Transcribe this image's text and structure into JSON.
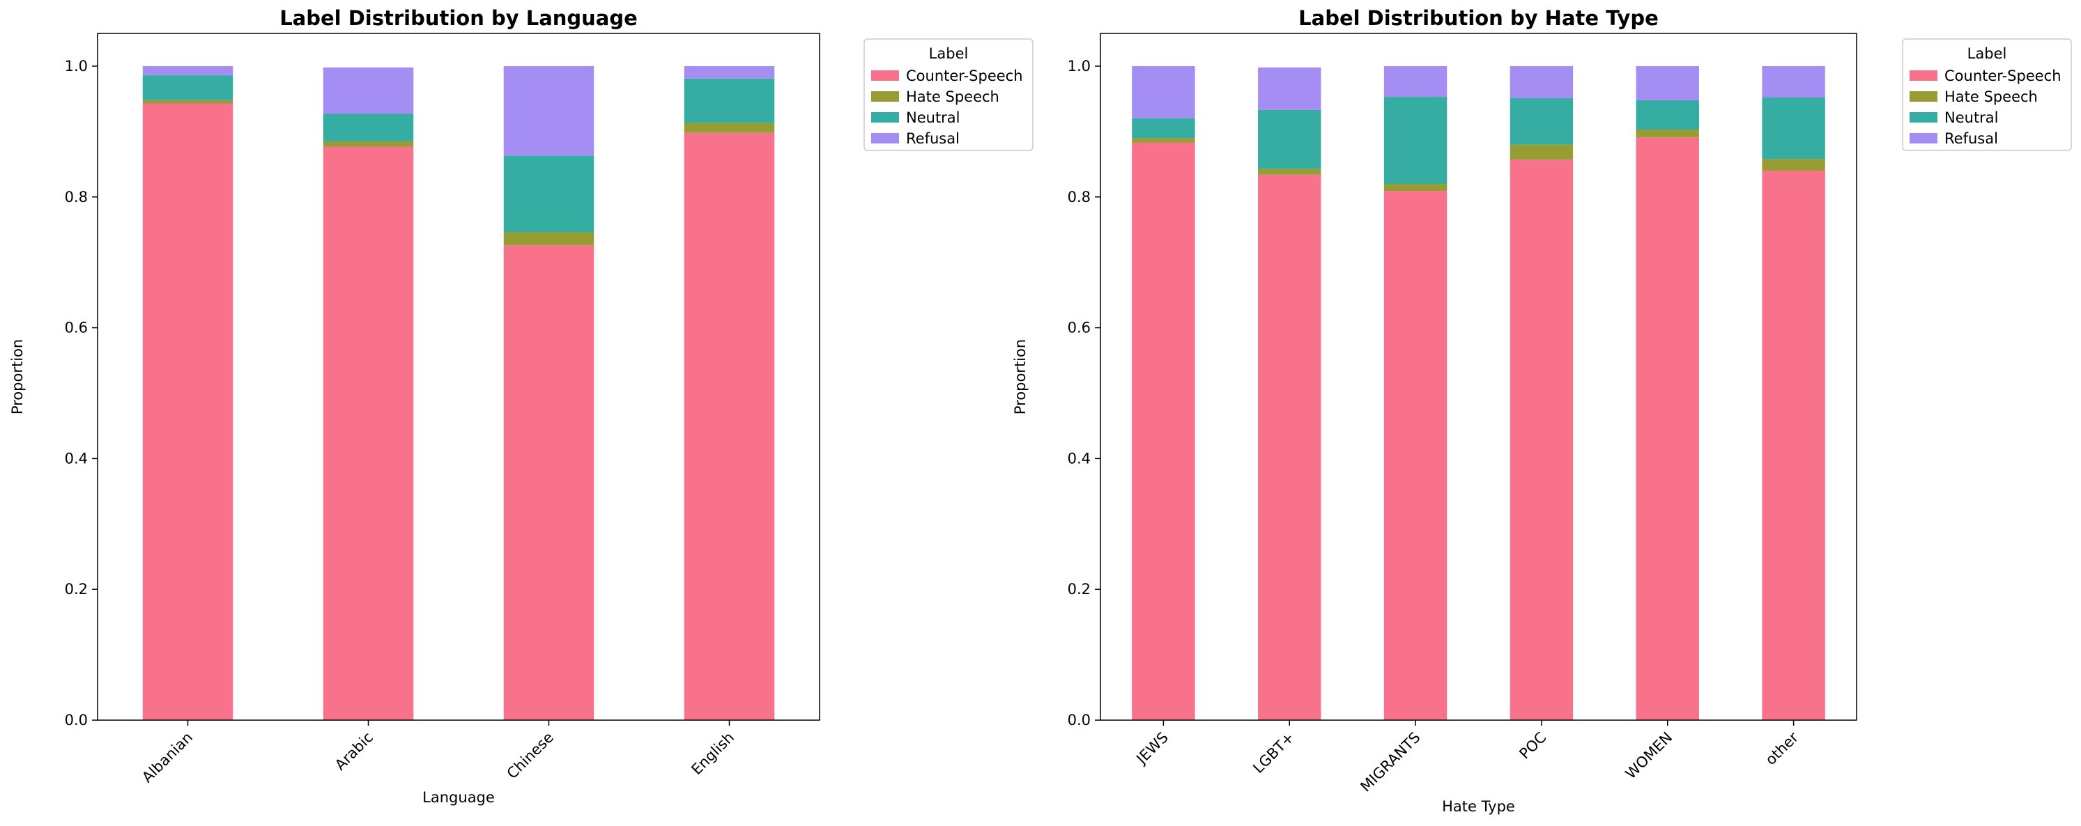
{
  "chart_data": [
    {
      "type": "bar",
      "stacked": true,
      "title": "Label Distribution by Language",
      "xlabel": "Language",
      "ylabel": "Proportion",
      "ylim": [
        0,
        1.05
      ],
      "yticks": [
        "0.0",
        "0.2",
        "0.4",
        "0.6",
        "0.8",
        "1.0"
      ],
      "categories": [
        "Albanian",
        "Arabic",
        "Chinese",
        "English"
      ],
      "legend": {
        "title": "Label",
        "position": "outside-top-right"
      },
      "series": [
        {
          "name": "Counter-Speech",
          "values": [
            0.943,
            0.877,
            0.726,
            0.898
          ]
        },
        {
          "name": "Hate Speech",
          "values": [
            0.005,
            0.008,
            0.02,
            0.015
          ]
        },
        {
          "name": "Neutral",
          "values": [
            0.038,
            0.042,
            0.117,
            0.068
          ]
        },
        {
          "name": "Refusal",
          "values": [
            0.014,
            0.071,
            0.137,
            0.019
          ]
        }
      ],
      "grid": false
    },
    {
      "type": "bar",
      "stacked": true,
      "title": "Label Distribution by Hate Type",
      "xlabel": "Hate Type",
      "ylabel": "Proportion",
      "ylim": [
        0,
        1.05
      ],
      "yticks": [
        "0.0",
        "0.2",
        "0.4",
        "0.6",
        "0.8",
        "1.0"
      ],
      "categories": [
        "JEWS",
        "LGBT+",
        "MIGRANTS",
        "POC",
        "WOMEN",
        "other"
      ],
      "legend": {
        "title": "Label",
        "position": "outside-top-right"
      },
      "series": [
        {
          "name": "Counter-Speech",
          "values": [
            0.883,
            0.834,
            0.809,
            0.857,
            0.891,
            0.84
          ]
        },
        {
          "name": "Hate Speech",
          "values": [
            0.007,
            0.009,
            0.011,
            0.023,
            0.012,
            0.018
          ]
        },
        {
          "name": "Neutral",
          "values": [
            0.03,
            0.09,
            0.133,
            0.071,
            0.045,
            0.094
          ]
        },
        {
          "name": "Refusal",
          "values": [
            0.08,
            0.065,
            0.047,
            0.049,
            0.052,
            0.048
          ]
        }
      ],
      "grid": false
    }
  ],
  "colors": {
    "Counter-Speech": "#f7728a",
    "Hate Speech": "#979c33",
    "Neutral": "#36ada3",
    "Refusal": "#a58ef3"
  }
}
